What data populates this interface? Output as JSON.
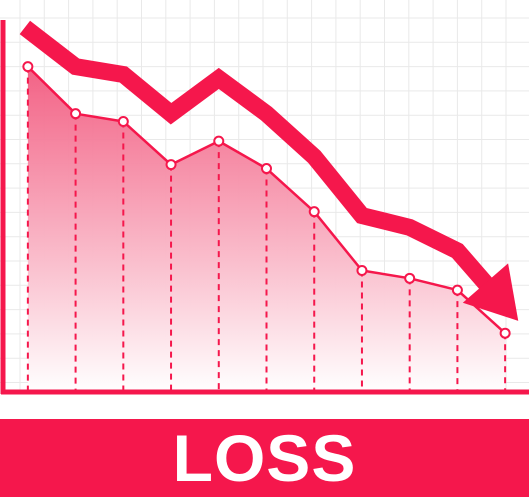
{
  "banner": {
    "label": "LOSS"
  },
  "colors": {
    "accent": "#f5174c",
    "grid": "#e9e9e9",
    "area_top": "#f25a7f",
    "area_bottom": "#ffffff",
    "background": "#ffffff"
  },
  "icons": {
    "trend": "arrow-down-right"
  },
  "chart_data": {
    "type": "area",
    "title": "",
    "xlabel": "",
    "ylabel": "",
    "grid": true,
    "legend": "none",
    "x": [
      1,
      2,
      3,
      4,
      5,
      6,
      7,
      8,
      9,
      10,
      11
    ],
    "xlim": [
      0.5,
      11.5
    ],
    "ylim": [
      0,
      100
    ],
    "series": [
      {
        "values": [
          83,
          71,
          69,
          58,
          64,
          57,
          46,
          31,
          29,
          26,
          15
        ]
      }
    ],
    "trend_arrow": {
      "values": [
        93,
        83,
        81,
        71,
        80,
        71,
        60,
        45,
        42,
        36,
        22
      ]
    }
  }
}
